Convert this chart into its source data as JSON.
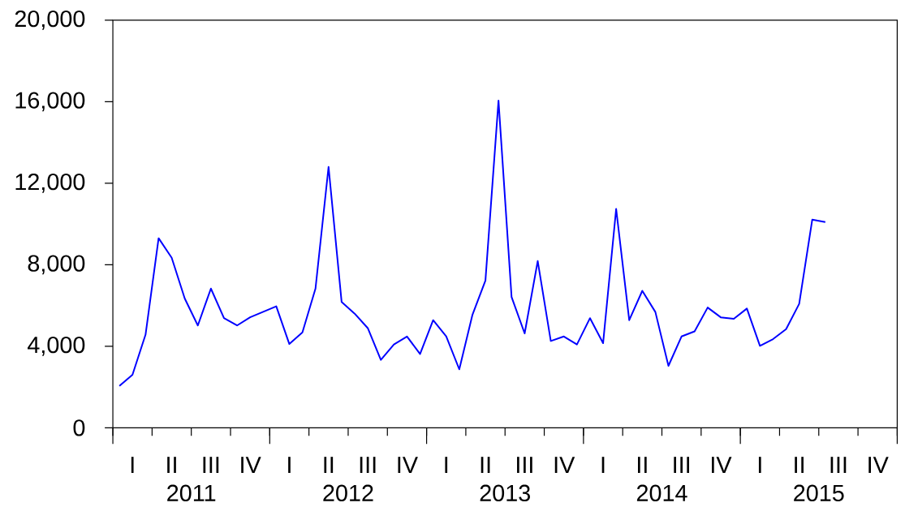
{
  "chart_data": {
    "type": "line",
    "color": "#0000ff",
    "categories": [
      null,
      "I",
      null,
      null,
      "II",
      null,
      null,
      "III",
      null,
      null,
      "IV",
      null,
      null,
      "I",
      null,
      null,
      "II",
      null,
      null,
      "III",
      null,
      null,
      "IV",
      null,
      null,
      "I",
      null,
      null,
      "II",
      null,
      null,
      "III",
      null,
      null,
      "IV",
      null,
      null,
      "I",
      null,
      null,
      "II",
      null,
      null,
      "III",
      null,
      null,
      "IV",
      null,
      null,
      "I",
      null,
      null,
      "II",
      null,
      null,
      "III",
      null,
      null,
      "IV",
      null
    ],
    "values": [
      2050,
      2600,
      4570,
      9300,
      8340,
      6340,
      5020,
      6830,
      5380,
      5020,
      5420,
      5690,
      5960,
      4110,
      4680,
      6830,
      12800,
      6170,
      5600,
      4890,
      3330,
      4090,
      4480,
      3620,
      5280,
      4490,
      2870,
      5530,
      7220,
      16050,
      6420,
      4630,
      8180,
      4260,
      4480,
      4090,
      5380,
      4150,
      10740,
      5280,
      6720,
      5680,
      3040,
      4480,
      4730,
      5900,
      5420,
      5350,
      5850,
      4020,
      4350,
      4840,
      6080,
      10210,
      10090,
      null,
      null,
      null,
      null,
      null
    ],
    "annotations": [
      "2011",
      "2012",
      "2013",
      "2014",
      "2015"
    ],
    "ylim": [
      0,
      20000
    ],
    "yticks": [
      0,
      {
        "value": 4000,
        "label": "4,000"
      },
      {
        "value": 8000,
        "label": "8,000"
      },
      {
        "value": 12000,
        "label": "12,000"
      },
      {
        "value": 16000,
        "label": "16,000"
      },
      {
        "value": 20000,
        "label": "20,000"
      }
    ]
  }
}
